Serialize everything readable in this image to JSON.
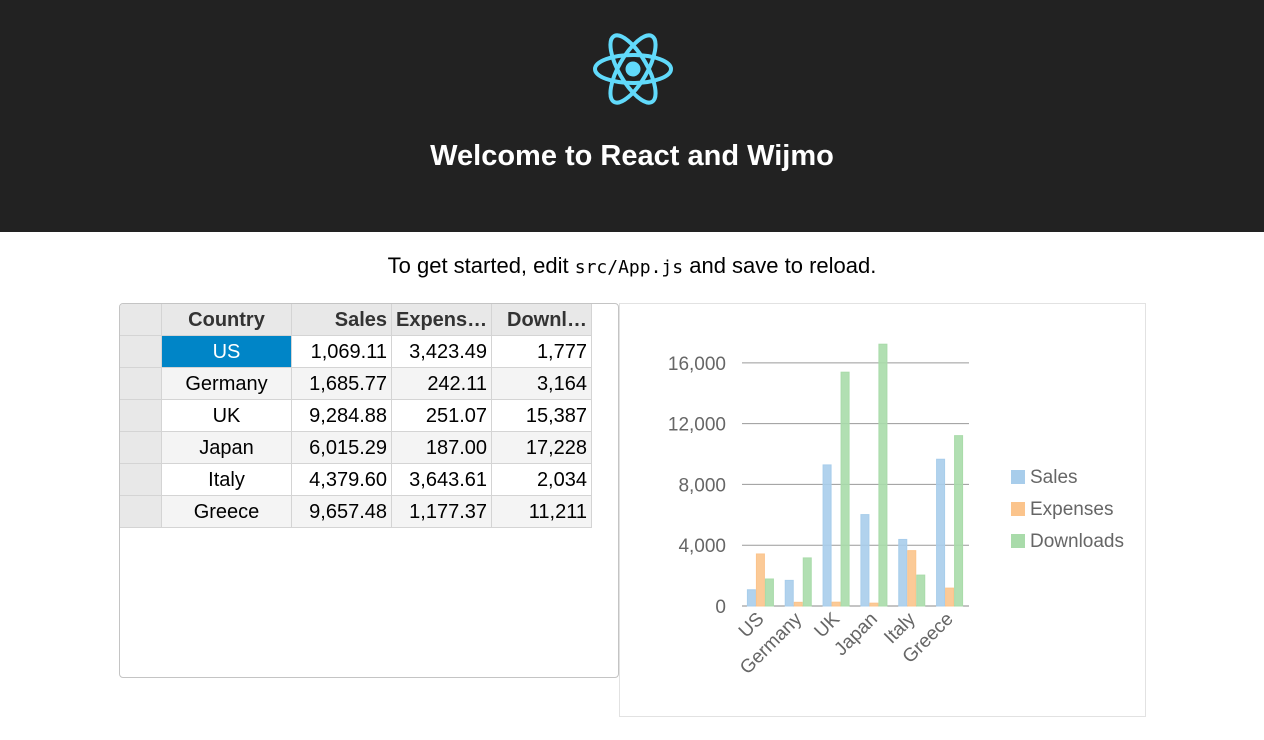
{
  "header": {
    "logo_icon": "react-atom-icon",
    "logo_color": "#61dafb",
    "title": "Welcome to React and Wijmo"
  },
  "intro": {
    "before": "To get started, edit ",
    "code": "src/App.js",
    "after": " and save to reload."
  },
  "grid": {
    "columns": [
      "Country",
      "Sales",
      "Expens…",
      "Downl…"
    ],
    "selected_row": 0,
    "selection_color": "#0085c7",
    "rows": [
      {
        "country": "US",
        "sales": "1,069.11",
        "expenses": "3,423.49",
        "downloads": "1,777"
      },
      {
        "country": "Germany",
        "sales": "1,685.77",
        "expenses": "242.11",
        "downloads": "3,164"
      },
      {
        "country": "UK",
        "sales": "9,284.88",
        "expenses": "251.07",
        "downloads": "15,387"
      },
      {
        "country": "Japan",
        "sales": "6,015.29",
        "expenses": "187.00",
        "downloads": "17,228"
      },
      {
        "country": "Italy",
        "sales": "4,379.60",
        "expenses": "3,643.61",
        "downloads": "2,034"
      },
      {
        "country": "Greece",
        "sales": "9,657.48",
        "expenses": "1,177.37",
        "downloads": "11,211"
      }
    ]
  },
  "chart_data": {
    "type": "bar",
    "categories": [
      "US",
      "Germany",
      "UK",
      "Japan",
      "Italy",
      "Greece"
    ],
    "series": [
      {
        "name": "Sales",
        "color": "#a8cdeb",
        "values": [
          1069.11,
          1685.77,
          9284.88,
          6015.29,
          4379.6,
          9657.48
        ]
      },
      {
        "name": "Expenses",
        "color": "#fbc48c",
        "values": [
          3423.49,
          242.11,
          251.07,
          187.0,
          3643.61,
          1177.37
        ]
      },
      {
        "name": "Downloads",
        "color": "#a9dbaa",
        "values": [
          1777,
          3164,
          15387,
          17228,
          2034,
          11211
        ]
      }
    ],
    "ylim": [
      0,
      16000
    ],
    "yticks": [
      "0",
      "4,000",
      "8,000",
      "12,000",
      "16,000"
    ],
    "grid": true,
    "legend_position": "right"
  }
}
